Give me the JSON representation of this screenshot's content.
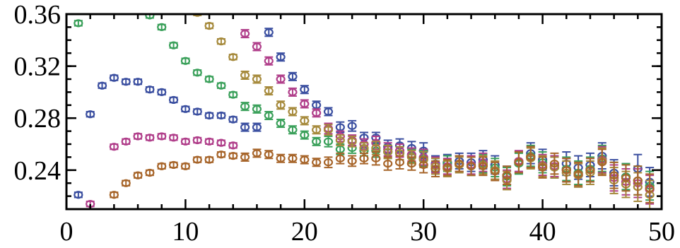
{
  "chart_data": {
    "type": "scatter",
    "title": "",
    "xlabel": "",
    "ylabel": "",
    "xlim": [
      0,
      50
    ],
    "ylim": [
      0.21,
      0.36
    ],
    "x_ticks": [
      0,
      10,
      20,
      30,
      40,
      50
    ],
    "x_tick_labels": [
      "0",
      "10",
      "20",
      "30",
      "40",
      "50"
    ],
    "y_ticks": [
      0.24,
      0.28,
      0.32,
      0.36
    ],
    "y_tick_labels": [
      "0.24",
      "0.28",
      "0.32",
      "0.36"
    ],
    "grid": false,
    "legend": "none",
    "marker": "open-circle-with-errorbars",
    "series": [
      {
        "color": "#3b4fa0",
        "points": [
          [
            1,
            0.221,
            0.002
          ],
          [
            2,
            0.283,
            0.002
          ],
          [
            3,
            0.305,
            0.002
          ],
          [
            4,
            0.311,
            0.002
          ],
          [
            5,
            0.308,
            0.002
          ],
          [
            6,
            0.308,
            0.002
          ],
          [
            7,
            0.302,
            0.002
          ],
          [
            8,
            0.3,
            0.002
          ],
          [
            9,
            0.294,
            0.002
          ],
          [
            10,
            0.287,
            0.002
          ],
          [
            11,
            0.285,
            0.002
          ],
          [
            12,
            0.282,
            0.002
          ],
          [
            13,
            0.282,
            0.002
          ],
          [
            14,
            0.279,
            0.002
          ],
          [
            15,
            0.273,
            0.003
          ],
          [
            16,
            0.273,
            0.003
          ],
          [
            17,
            0.346,
            0.003
          ],
          [
            18,
            0.327,
            0.003
          ],
          [
            19,
            0.312,
            0.003
          ],
          [
            20,
            0.302,
            0.003
          ],
          [
            21,
            0.29,
            0.003
          ],
          [
            22,
            0.285,
            0.003
          ],
          [
            23,
            0.273,
            0.004
          ],
          [
            24,
            0.274,
            0.004
          ],
          [
            25,
            0.265,
            0.004
          ],
          [
            26,
            0.265,
            0.004
          ],
          [
            27,
            0.258,
            0.005
          ],
          [
            28,
            0.259,
            0.005
          ],
          [
            29,
            0.257,
            0.005
          ],
          [
            30,
            0.255,
            0.006
          ],
          [
            31,
            0.245,
            0.006
          ],
          [
            32,
            0.246,
            0.006
          ],
          [
            33,
            0.247,
            0.006
          ],
          [
            34,
            0.246,
            0.007
          ],
          [
            35,
            0.248,
            0.007
          ],
          [
            36,
            0.244,
            0.007
          ],
          [
            37,
            0.236,
            0.007
          ],
          [
            38,
            0.246,
            0.008
          ],
          [
            39,
            0.253,
            0.008
          ],
          [
            40,
            0.248,
            0.008
          ],
          [
            41,
            0.243,
            0.008
          ],
          [
            42,
            0.245,
            0.009
          ],
          [
            43,
            0.242,
            0.009
          ],
          [
            44,
            0.244,
            0.009
          ],
          [
            45,
            0.251,
            0.01
          ],
          [
            46,
            0.238,
            0.01
          ],
          [
            47,
            0.235,
            0.01
          ],
          [
            48,
            0.241,
            0.011
          ],
          [
            49,
            0.231,
            0.011
          ]
        ]
      },
      {
        "color": "#3aa05a",
        "points": [
          [
            1,
            0.353,
            0.002
          ],
          [
            7,
            0.359,
            0.002
          ],
          [
            8,
            0.35,
            0.002
          ],
          [
            9,
            0.336,
            0.002
          ],
          [
            10,
            0.324,
            0.002
          ],
          [
            11,
            0.315,
            0.002
          ],
          [
            12,
            0.31,
            0.002
          ],
          [
            13,
            0.305,
            0.002
          ],
          [
            14,
            0.298,
            0.002
          ],
          [
            15,
            0.289,
            0.003
          ],
          [
            16,
            0.287,
            0.003
          ],
          [
            17,
            0.282,
            0.003
          ],
          [
            18,
            0.276,
            0.003
          ],
          [
            19,
            0.271,
            0.003
          ],
          [
            20,
            0.267,
            0.003
          ],
          [
            21,
            0.262,
            0.003
          ],
          [
            22,
            0.262,
            0.004
          ],
          [
            23,
            0.256,
            0.004
          ],
          [
            24,
            0.257,
            0.004
          ],
          [
            25,
            0.255,
            0.004
          ],
          [
            26,
            0.255,
            0.005
          ],
          [
            27,
            0.254,
            0.005
          ],
          [
            28,
            0.253,
            0.005
          ],
          [
            29,
            0.251,
            0.005
          ],
          [
            30,
            0.249,
            0.006
          ],
          [
            31,
            0.243,
            0.006
          ],
          [
            32,
            0.245,
            0.006
          ],
          [
            33,
            0.245,
            0.006
          ],
          [
            34,
            0.243,
            0.007
          ],
          [
            35,
            0.245,
            0.007
          ],
          [
            36,
            0.242,
            0.007
          ],
          [
            37,
            0.235,
            0.007
          ],
          [
            38,
            0.245,
            0.008
          ],
          [
            39,
            0.251,
            0.008
          ],
          [
            40,
            0.246,
            0.008
          ],
          [
            41,
            0.242,
            0.008
          ],
          [
            42,
            0.241,
            0.009
          ],
          [
            43,
            0.238,
            0.009
          ],
          [
            44,
            0.241,
            0.009
          ],
          [
            45,
            0.249,
            0.01
          ],
          [
            46,
            0.236,
            0.01
          ],
          [
            47,
            0.235,
            0.01
          ],
          [
            48,
            0.232,
            0.011
          ],
          [
            49,
            0.228,
            0.011
          ]
        ]
      },
      {
        "color": "#b03e8a",
        "points": [
          [
            2,
            0.214,
            0.002
          ],
          [
            4,
            0.258,
            0.002
          ],
          [
            5,
            0.262,
            0.002
          ],
          [
            6,
            0.266,
            0.002
          ],
          [
            7,
            0.265,
            0.002
          ],
          [
            8,
            0.266,
            0.002
          ],
          [
            9,
            0.265,
            0.002
          ],
          [
            10,
            0.262,
            0.002
          ],
          [
            11,
            0.263,
            0.002
          ],
          [
            12,
            0.262,
            0.002
          ],
          [
            13,
            0.261,
            0.002
          ],
          [
            14,
            0.259,
            0.002
          ],
          [
            15,
            0.345,
            0.003
          ],
          [
            16,
            0.335,
            0.003
          ],
          [
            17,
            0.324,
            0.003
          ],
          [
            18,
            0.31,
            0.003
          ],
          [
            19,
            0.3,
            0.003
          ],
          [
            20,
            0.291,
            0.003
          ],
          [
            21,
            0.284,
            0.003
          ],
          [
            22,
            0.272,
            0.004
          ],
          [
            23,
            0.266,
            0.004
          ],
          [
            24,
            0.263,
            0.004
          ],
          [
            25,
            0.26,
            0.004
          ],
          [
            26,
            0.261,
            0.005
          ],
          [
            27,
            0.256,
            0.005
          ],
          [
            28,
            0.255,
            0.005
          ],
          [
            29,
            0.252,
            0.005
          ],
          [
            30,
            0.25,
            0.006
          ],
          [
            31,
            0.244,
            0.006
          ],
          [
            32,
            0.243,
            0.006
          ],
          [
            33,
            0.245,
            0.006
          ],
          [
            34,
            0.244,
            0.007
          ],
          [
            35,
            0.246,
            0.007
          ],
          [
            36,
            0.24,
            0.007
          ],
          [
            37,
            0.233,
            0.007
          ],
          [
            38,
            0.247,
            0.008
          ],
          [
            39,
            0.25,
            0.008
          ],
          [
            40,
            0.244,
            0.008
          ],
          [
            41,
            0.243,
            0.008
          ],
          [
            42,
            0.24,
            0.009
          ],
          [
            43,
            0.236,
            0.009
          ],
          [
            44,
            0.24,
            0.009
          ],
          [
            45,
            0.248,
            0.01
          ],
          [
            46,
            0.234,
            0.01
          ],
          [
            47,
            0.231,
            0.01
          ],
          [
            48,
            0.23,
            0.011
          ],
          [
            49,
            0.225,
            0.011
          ]
        ]
      },
      {
        "color": "#a68a3c",
        "points": [
          [
            11,
            0.361,
            0.002
          ],
          [
            12,
            0.351,
            0.002
          ],
          [
            13,
            0.339,
            0.002
          ],
          [
            14,
            0.327,
            0.002
          ],
          [
            15,
            0.313,
            0.003
          ],
          [
            16,
            0.31,
            0.003
          ],
          [
            17,
            0.301,
            0.003
          ],
          [
            18,
            0.29,
            0.003
          ],
          [
            19,
            0.285,
            0.003
          ],
          [
            20,
            0.278,
            0.003
          ],
          [
            21,
            0.271,
            0.003
          ],
          [
            22,
            0.271,
            0.004
          ],
          [
            23,
            0.263,
            0.004
          ],
          [
            24,
            0.262,
            0.004
          ],
          [
            25,
            0.257,
            0.004
          ],
          [
            26,
            0.257,
            0.005
          ],
          [
            27,
            0.254,
            0.005
          ],
          [
            28,
            0.253,
            0.005
          ],
          [
            29,
            0.25,
            0.005
          ],
          [
            30,
            0.248,
            0.006
          ],
          [
            31,
            0.243,
            0.006
          ],
          [
            32,
            0.241,
            0.006
          ],
          [
            33,
            0.244,
            0.006
          ],
          [
            34,
            0.243,
            0.007
          ],
          [
            35,
            0.244,
            0.007
          ],
          [
            36,
            0.24,
            0.007
          ],
          [
            37,
            0.232,
            0.007
          ],
          [
            38,
            0.246,
            0.008
          ],
          [
            39,
            0.249,
            0.008
          ],
          [
            40,
            0.243,
            0.008
          ],
          [
            41,
            0.242,
            0.008
          ],
          [
            42,
            0.238,
            0.009
          ],
          [
            43,
            0.236,
            0.009
          ],
          [
            44,
            0.238,
            0.009
          ],
          [
            45,
            0.247,
            0.01
          ],
          [
            46,
            0.232,
            0.01
          ],
          [
            47,
            0.229,
            0.01
          ],
          [
            48,
            0.227,
            0.011
          ],
          [
            49,
            0.221,
            0.011
          ]
        ]
      },
      {
        "color": "#a7652a",
        "points": [
          [
            4,
            0.221,
            0.002
          ],
          [
            5,
            0.23,
            0.002
          ],
          [
            6,
            0.236,
            0.002
          ],
          [
            7,
            0.238,
            0.002
          ],
          [
            8,
            0.243,
            0.002
          ],
          [
            9,
            0.244,
            0.002
          ],
          [
            10,
            0.243,
            0.002
          ],
          [
            11,
            0.248,
            0.002
          ],
          [
            12,
            0.248,
            0.002
          ],
          [
            13,
            0.252,
            0.002
          ],
          [
            14,
            0.251,
            0.002
          ],
          [
            15,
            0.25,
            0.003
          ],
          [
            16,
            0.253,
            0.003
          ],
          [
            17,
            0.252,
            0.003
          ],
          [
            18,
            0.249,
            0.003
          ],
          [
            19,
            0.249,
            0.003
          ],
          [
            20,
            0.248,
            0.003
          ],
          [
            21,
            0.246,
            0.003
          ],
          [
            22,
            0.246,
            0.004
          ],
          [
            23,
            0.249,
            0.004
          ],
          [
            24,
            0.247,
            0.004
          ],
          [
            25,
            0.249,
            0.004
          ],
          [
            26,
            0.249,
            0.005
          ],
          [
            27,
            0.245,
            0.005
          ],
          [
            28,
            0.246,
            0.005
          ],
          [
            29,
            0.245,
            0.005
          ],
          [
            30,
            0.244,
            0.006
          ],
          [
            31,
            0.241,
            0.006
          ],
          [
            32,
            0.242,
            0.006
          ],
          [
            33,
            0.245,
            0.006
          ],
          [
            34,
            0.243,
            0.007
          ],
          [
            35,
            0.243,
            0.007
          ],
          [
            36,
            0.239,
            0.007
          ],
          [
            37,
            0.236,
            0.007
          ],
          [
            38,
            0.246,
            0.008
          ],
          [
            39,
            0.25,
            0.008
          ],
          [
            40,
            0.242,
            0.008
          ],
          [
            41,
            0.245,
            0.008
          ],
          [
            42,
            0.24,
            0.009
          ],
          [
            43,
            0.237,
            0.009
          ],
          [
            44,
            0.24,
            0.009
          ],
          [
            45,
            0.246,
            0.01
          ],
          [
            46,
            0.236,
            0.01
          ],
          [
            47,
            0.234,
            0.01
          ],
          [
            48,
            0.232,
            0.011
          ],
          [
            49,
            0.226,
            0.011
          ]
        ]
      }
    ]
  }
}
